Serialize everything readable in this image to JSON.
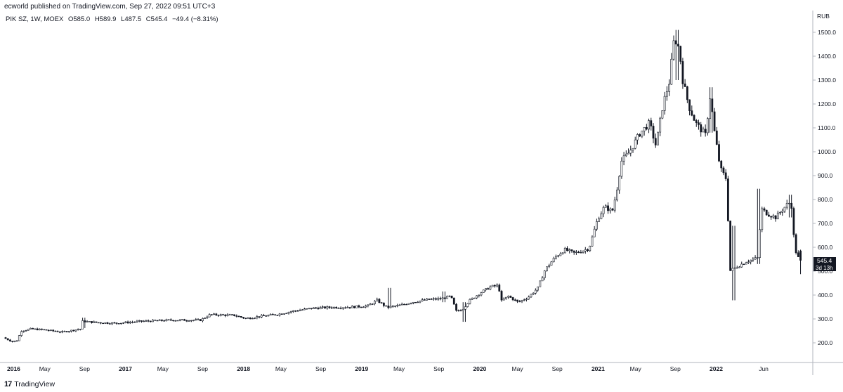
{
  "header": {
    "published": "ecworld published on TradingView.com, Sep 27, 2022 09:51 UTC+3"
  },
  "legend": {
    "symbol": "PIK SZ, 1W, MOEX",
    "open": "O585.0",
    "high": "H589.9",
    "low": "L487.5",
    "close": "C545.4",
    "change": "−49.4 (−8.31%)"
  },
  "footer": {
    "logo": "17",
    "brand": "TradingView"
  },
  "price_label": {
    "value": "545.4",
    "countdown": "3d 13h"
  },
  "chart_data": {
    "type": "candlestick",
    "title": "",
    "currency_label": "RUB",
    "y_range": [
      100,
      1560
    ],
    "y_ticks": [
      200,
      300,
      400,
      500,
      600,
      700,
      800,
      900,
      1000,
      1100,
      1200,
      1300,
      1400,
      1500
    ],
    "y_tick_labels": [
      "200.0",
      "300.0",
      "400.0",
      "500.0",
      "600.0",
      "700.0",
      "800.0",
      "900.0",
      "1000.0",
      "1100.0",
      "1200.0",
      "1300.0",
      "1400.0",
      "1500.0"
    ],
    "x_range": [
      "2016-01-01",
      "2022-09-30"
    ],
    "x_ticks": [
      {
        "date": "2016-01-01",
        "label": "2016",
        "year": true
      },
      {
        "date": "2016-05-01",
        "label": "May",
        "year": false
      },
      {
        "date": "2016-09-01",
        "label": "Sep",
        "year": false
      },
      {
        "date": "2017-01-01",
        "label": "2017",
        "year": true
      },
      {
        "date": "2017-05-01",
        "label": "May",
        "year": false
      },
      {
        "date": "2017-09-01",
        "label": "Sep",
        "year": false
      },
      {
        "date": "2018-01-01",
        "label": "2018",
        "year": true
      },
      {
        "date": "2018-05-01",
        "label": "May",
        "year": false
      },
      {
        "date": "2018-09-01",
        "label": "Sep",
        "year": false
      },
      {
        "date": "2019-01-01",
        "label": "2019",
        "year": true
      },
      {
        "date": "2019-05-01",
        "label": "May",
        "year": false
      },
      {
        "date": "2019-09-01",
        "label": "Sep",
        "year": false
      },
      {
        "date": "2020-01-01",
        "label": "2020",
        "year": true
      },
      {
        "date": "2020-05-01",
        "label": "May",
        "year": false
      },
      {
        "date": "2020-09-01",
        "label": "Sep",
        "year": false
      },
      {
        "date": "2021-01-01",
        "label": "2021",
        "year": true
      },
      {
        "date": "2021-05-01",
        "label": "May",
        "year": false
      },
      {
        "date": "2021-09-01",
        "label": "Sep",
        "year": false
      },
      {
        "date": "2022-01-01",
        "label": "2022",
        "year": true
      },
      {
        "date": "2022-06-01",
        "label": "Jun",
        "year": false
      }
    ],
    "price_path": [
      [
        "2016-01-01",
        222
      ],
      [
        "2016-01-29",
        205
      ],
      [
        "2016-02-12",
        210
      ],
      [
        "2016-02-26",
        250
      ],
      [
        "2016-03-25",
        258
      ],
      [
        "2016-05-01",
        255
      ],
      [
        "2016-07-01",
        245
      ],
      [
        "2016-08-26",
        258
      ],
      [
        "2016-09-02",
        290
      ],
      [
        "2016-10-15",
        285
      ],
      [
        "2016-12-15",
        282
      ],
      [
        "2017-03-01",
        290
      ],
      [
        "2017-06-01",
        295
      ],
      [
        "2017-09-01",
        295
      ],
      [
        "2017-10-01",
        318
      ],
      [
        "2017-12-15",
        315
      ],
      [
        "2018-01-20",
        302
      ],
      [
        "2018-03-01",
        310
      ],
      [
        "2018-05-01",
        320
      ],
      [
        "2018-06-15",
        333
      ],
      [
        "2018-08-15",
        345
      ],
      [
        "2018-10-01",
        348
      ],
      [
        "2018-12-15",
        350
      ],
      [
        "2019-02-01",
        355
      ],
      [
        "2019-03-01",
        378
      ],
      [
        "2019-04-01",
        348
      ],
      [
        "2019-05-15",
        358
      ],
      [
        "2019-06-15",
        370
      ],
      [
        "2019-08-01",
        380
      ],
      [
        "2019-09-15",
        385
      ],
      [
        "2019-10-15",
        395
      ],
      [
        "2019-11-01",
        333
      ],
      [
        "2019-11-20",
        340
      ],
      [
        "2019-12-10",
        375
      ],
      [
        "2020-01-15",
        410
      ],
      [
        "2020-02-15",
        435
      ],
      [
        "2020-03-10",
        440
      ],
      [
        "2020-03-20",
        375
      ],
      [
        "2020-04-10",
        395
      ],
      [
        "2020-05-10",
        370
      ],
      [
        "2020-06-10",
        390
      ],
      [
        "2020-07-10",
        430
      ],
      [
        "2020-08-01",
        505
      ],
      [
        "2020-09-01",
        558
      ],
      [
        "2020-10-01",
        590
      ],
      [
        "2020-11-01",
        575
      ],
      [
        "2020-12-15",
        595
      ],
      [
        "2021-01-10",
        715
      ],
      [
        "2021-02-01",
        770
      ],
      [
        "2021-02-25",
        750
      ],
      [
        "2021-03-10",
        830
      ],
      [
        "2021-03-25",
        960
      ],
      [
        "2021-04-20",
        1000
      ],
      [
        "2021-05-20",
        1075
      ],
      [
        "2021-06-20",
        1120
      ],
      [
        "2021-07-10",
        1025
      ],
      [
        "2021-08-01",
        1200
      ],
      [
        "2021-08-20",
        1290
      ],
      [
        "2021-09-05",
        1480
      ],
      [
        "2021-09-20",
        1430
      ],
      [
        "2021-10-01",
        1300
      ],
      [
        "2021-10-20",
        1190
      ],
      [
        "2021-11-10",
        1120
      ],
      [
        "2021-12-10",
        1070
      ],
      [
        "2021-12-25",
        1240
      ],
      [
        "2022-01-05",
        1100
      ],
      [
        "2022-01-25",
        930
      ],
      [
        "2022-02-15",
        880
      ],
      [
        "2022-02-22",
        500
      ],
      [
        "2022-03-20",
        520
      ],
      [
        "2022-04-15",
        540
      ],
      [
        "2022-05-20",
        555
      ],
      [
        "2022-06-01",
        760
      ],
      [
        "2022-06-20",
        740
      ],
      [
        "2022-07-15",
        725
      ],
      [
        "2022-08-20",
        780
      ],
      [
        "2022-09-01",
        790
      ],
      [
        "2022-09-12",
        595
      ],
      [
        "2022-09-26",
        545.4
      ]
    ],
    "notable_wicks": [
      {
        "date": "2016-09-02",
        "high": 305,
        "low": 262
      },
      {
        "date": "2019-04-05",
        "high": 430,
        "low": 345
      },
      {
        "date": "2019-09-20",
        "high": 415,
        "low": 370
      },
      {
        "date": "2019-11-22",
        "high": 370,
        "low": 288
      },
      {
        "date": "2021-09-10",
        "high": 1510,
        "low": 1300
      },
      {
        "date": "2021-12-24",
        "high": 1270,
        "low": 1080
      },
      {
        "date": "2022-03-04",
        "high": 690,
        "low": 378
      },
      {
        "date": "2022-05-20",
        "high": 845,
        "low": 530
      },
      {
        "date": "2022-08-25",
        "high": 820,
        "low": 725
      },
      {
        "date": "2022-09-26",
        "high": 589.9,
        "low": 487.5
      }
    ],
    "last_candle": {
      "open": 585.0,
      "high": 589.9,
      "low": 487.5,
      "close": 545.4
    },
    "grid": false,
    "colors": {
      "candle": "#131722",
      "background": "#ffffff",
      "price_label_bg": "#131722",
      "price_label_text": "#ffffff"
    }
  }
}
